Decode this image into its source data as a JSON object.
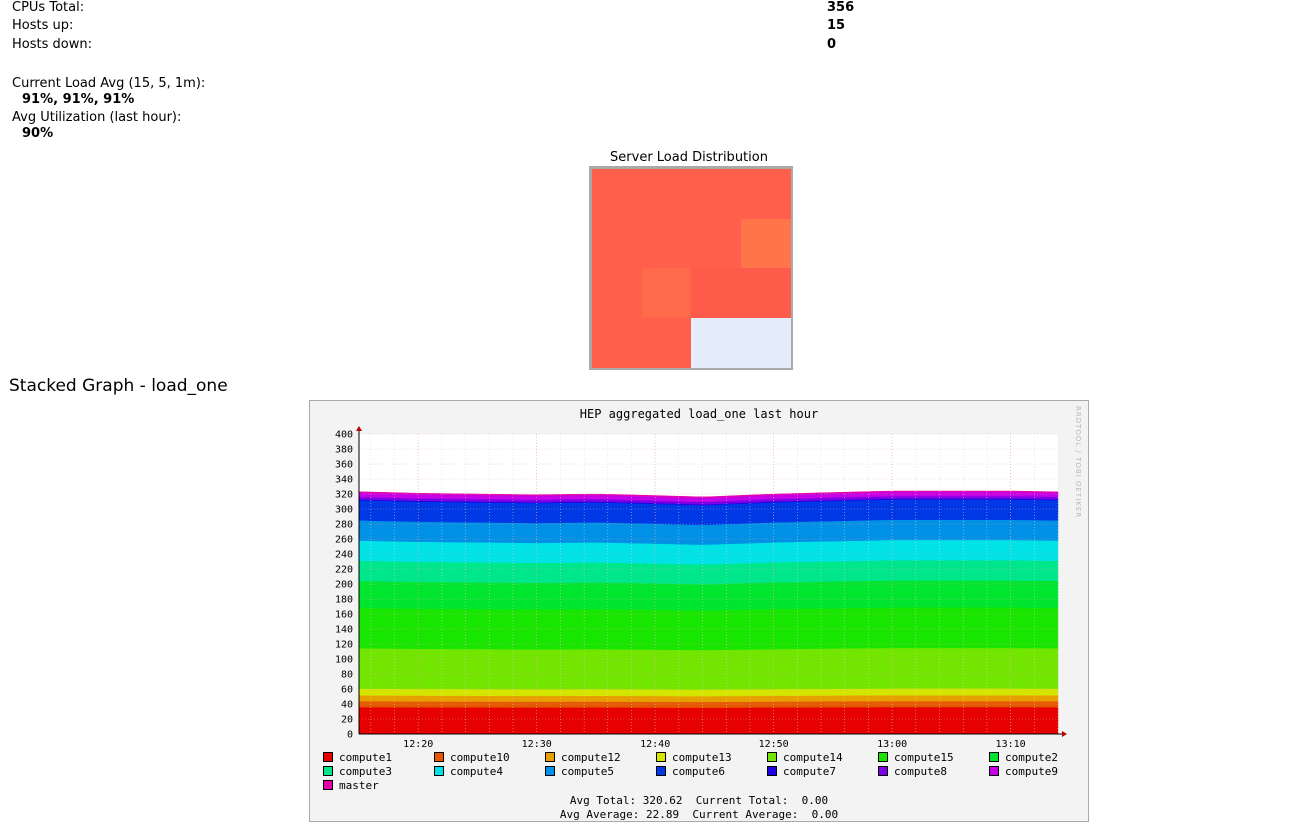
{
  "stats": [
    {
      "label": "CPUs Total:",
      "value": "356"
    },
    {
      "label": "Hosts up:",
      "value": "15"
    },
    {
      "label": "Hosts down:",
      "value": "0"
    }
  ],
  "load": {
    "avg_label": "Current Load Avg (15, 5, 1m):",
    "avg_value": "91%, 91%, 91%",
    "util_label": "Avg Utilization (last hour):",
    "util_value": "90%"
  },
  "heatmap": {
    "title": "Server Load Distribution",
    "cells": [
      "#ff5f4b",
      "#ff5f4b",
      "#ff5f4b",
      "#ff5f4b",
      "#ff5f4b",
      "#ff5f4b",
      "#ff5f4b",
      "#ff7449",
      "#ff5f4b",
      "#ff6a4b",
      "#ff5b4b",
      "#ff5b4b",
      "#ff5f4b",
      "#ff5f4b",
      "#e5edfc",
      "#e5edfc"
    ]
  },
  "section_title": "Stacked Graph - load_one",
  "graph": {
    "credit": "RRDTOOL / TOBI OETIKER",
    "summary_line1": "Avg Total: 320.62  Current Total:  0.00",
    "summary_line2": "Avg Average: 22.89  Current Average:  0.00"
  },
  "chart_data": {
    "type": "area",
    "title": "HEP aggregated load_one last hour",
    "ylim": [
      0,
      400
    ],
    "y_ticks": [
      "0",
      "20",
      "40",
      "60",
      "80",
      "100",
      "120",
      "140",
      "160",
      "180",
      "200",
      "220",
      "240",
      "260",
      "280",
      "300",
      "320",
      "340",
      "360",
      "380",
      "400"
    ],
    "x_ticks": [
      "12:20",
      "12:30",
      "12:40",
      "12:50",
      "13:00",
      "13:10"
    ],
    "x_tick_minutes": [
      20,
      30,
      40,
      50,
      60,
      70
    ],
    "x_range_minutes": [
      15,
      74
    ],
    "total_profile_x": [
      15,
      20,
      25,
      30,
      35,
      40,
      44,
      47,
      50,
      55,
      60,
      65,
      70,
      74
    ],
    "total_profile_y": [
      323,
      321,
      320,
      319,
      320,
      318,
      316,
      318,
      320,
      322,
      324,
      324,
      324,
      323
    ],
    "grid": true,
    "legend_position": "bottom",
    "series": [
      {
        "name": "compute1",
        "color": "#e60000",
        "value": 32
      },
      {
        "name": "compute10",
        "color": "#e65800",
        "value": 7
      },
      {
        "name": "compute12",
        "color": "#e6a000",
        "value": 7
      },
      {
        "name": "compute13",
        "color": "#d4e600",
        "value": 8
      },
      {
        "name": "compute14",
        "color": "#72e600",
        "value": 48
      },
      {
        "name": "compute15",
        "color": "#18e600",
        "value": 48
      },
      {
        "name": "compute2",
        "color": "#00e62e",
        "value": 32
      },
      {
        "name": "compute3",
        "color": "#00e68a",
        "value": 24
      },
      {
        "name": "compute4",
        "color": "#00e2e6",
        "value": 24
      },
      {
        "name": "compute5",
        "color": "#0090e6",
        "value": 24
      },
      {
        "name": "compute6",
        "color": "#0038e6",
        "value": 24
      },
      {
        "name": "compute7",
        "color": "#1c00e6",
        "value": 1
      },
      {
        "name": "compute8",
        "color": "#7a00e6",
        "value": 3
      },
      {
        "name": "compute9",
        "color": "#c600e6",
        "value": 5
      },
      {
        "name": "master",
        "color": "#e600aa",
        "value": 1
      }
    ]
  }
}
